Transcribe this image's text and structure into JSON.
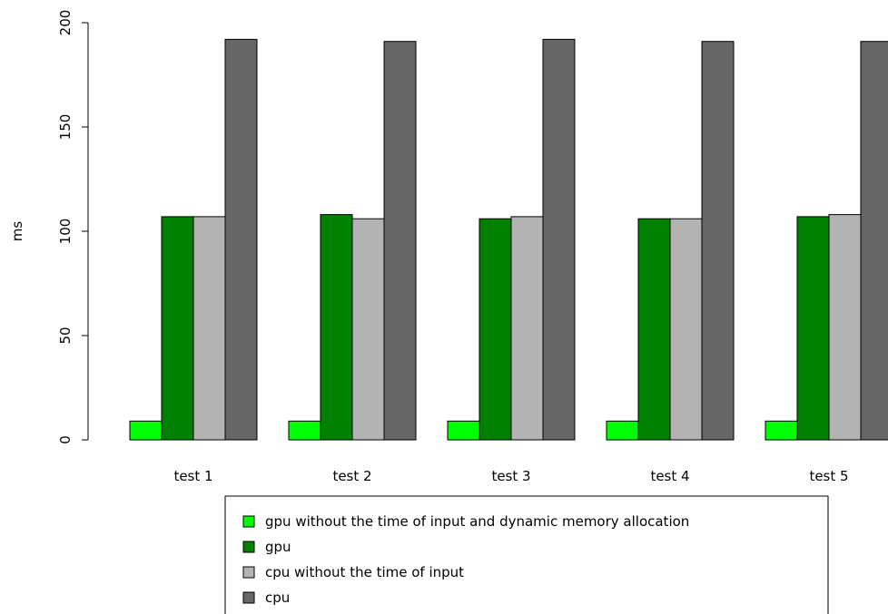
{
  "chart_data": {
    "type": "bar",
    "title": "",
    "xlabel": "",
    "ylabel": "ms",
    "ylim": [
      0,
      200
    ],
    "yticks": [
      "0",
      "50",
      "100",
      "150",
      "200"
    ],
    "categories": [
      "test 1",
      "test 2",
      "test 3",
      "test 4",
      "test 5"
    ],
    "series": [
      {
        "name": "gpu without the time of input and dynamic memory allocation",
        "color": "#00ff00",
        "values": [
          9,
          9,
          9,
          9,
          9
        ]
      },
      {
        "name": "gpu",
        "color": "#008000",
        "values": [
          107,
          108,
          106,
          106,
          107
        ]
      },
      {
        "name": "cpu without the time of input",
        "color": "#b3b3b3",
        "values": [
          107,
          106,
          107,
          106,
          108
        ]
      },
      {
        "name": "cpu",
        "color": "#666666",
        "values": [
          192,
          191,
          192,
          191,
          191
        ]
      }
    ],
    "grid": false,
    "legend_position": "bottom"
  }
}
